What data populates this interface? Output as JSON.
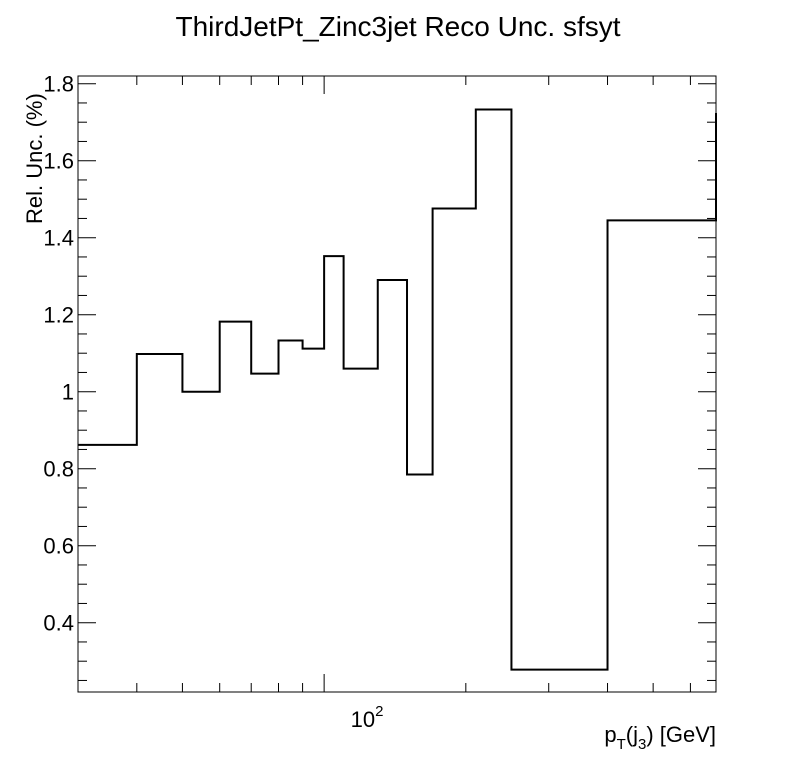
{
  "chart_data": {
    "type": "line",
    "title": "ThirdJetPt_Zinc3jet Reco Unc. sfsyt",
    "ylabel": "Rel. Unc. (%)",
    "xlabel": "p_T(j_3) [GeV]",
    "xlabel_parts": {
      "p": "p",
      "T": "T",
      "open": "(j",
      "sub3": "3",
      "close": ") [GeV]"
    },
    "x_scale": "log",
    "xlim": [
      30,
      680
    ],
    "ylim": [
      0.22,
      1.82
    ],
    "x_tick_label": {
      "base": "10",
      "exp": "2",
      "value": 100
    },
    "y_ticks": [
      {
        "value": 0.4,
        "label": "0.4"
      },
      {
        "value": 0.6,
        "label": "0.6"
      },
      {
        "value": 0.8,
        "label": "0.8"
      },
      {
        "value": 1.0,
        "label": "1"
      },
      {
        "value": 1.2,
        "label": "1.2"
      },
      {
        "value": 1.4,
        "label": "1.4"
      },
      {
        "value": 1.6,
        "label": "1.6"
      },
      {
        "value": 1.8,
        "label": "1.8"
      }
    ],
    "bin_edges": [
      30,
      40,
      50,
      60,
      70,
      80,
      90,
      100,
      110,
      130,
      150,
      170,
      210,
      250,
      400,
      680
    ],
    "values": [
      0.862,
      1.098,
      1.0,
      1.182,
      1.047,
      1.133,
      1.112,
      1.352,
      1.06,
      1.29,
      0.785,
      1.476,
      1.733,
      0.278,
      1.445,
      1.724
    ]
  }
}
